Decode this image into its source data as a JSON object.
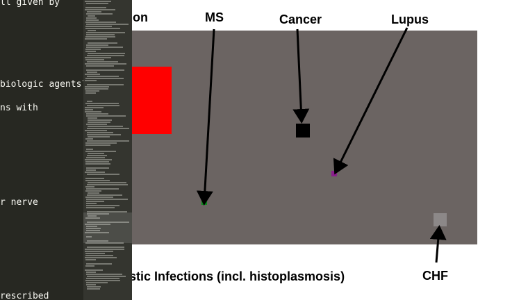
{
  "slide": {
    "title_fragment": "ion",
    "caption": "stic Infections (incl. histoplasmosis)",
    "labels": {
      "ms": "MS",
      "cancer": "Cancer",
      "lupus": "Lupus",
      "chf": "CHF"
    },
    "colors": {
      "plot_background": "#6b6462",
      "red_block": "#ff0000",
      "ms_marker": "#0b8a1c",
      "cancer_marker": "#000000",
      "lupus_marker": "#8a1e8c",
      "chf_marker": "#8c8888"
    }
  },
  "editor": {
    "lines": [
      "ll given by",
      "biologic agents?",
      "ns with",
      "r nerve",
      "rescribed"
    ]
  }
}
